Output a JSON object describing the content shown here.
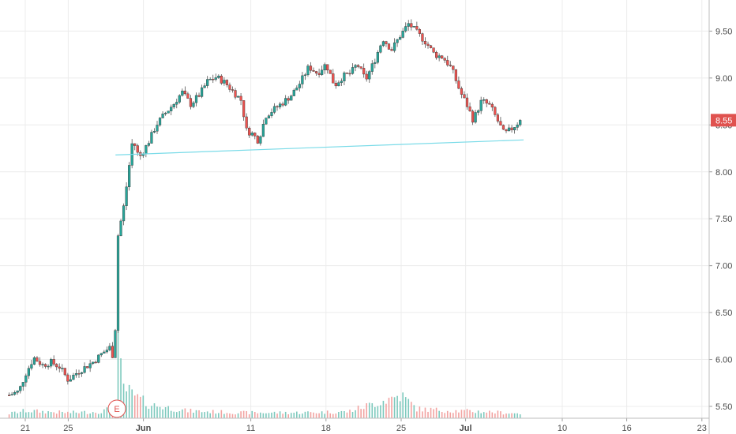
{
  "chart_data": {
    "type": "candlestick",
    "y_axis": {
      "ticks": [
        5.5,
        6.0,
        6.5,
        7.0,
        7.5,
        8.0,
        8.5,
        9.0,
        9.5
      ],
      "tick_labels": [
        "5.50",
        "6.00",
        "6.50",
        "7.00",
        "7.50",
        "8.00",
        "8.50",
        "9.00",
        "9.50"
      ],
      "ylim": [
        5.46,
        9.8
      ],
      "position": "right",
      "grid": true
    },
    "x_axis": {
      "ticks": [
        {
          "day": -10,
          "label": "21",
          "bold": false
        },
        {
          "day": -6,
          "label": "25",
          "bold": false
        },
        {
          "day": 1,
          "label": "Jun",
          "bold": true
        },
        {
          "day": 11,
          "label": "11",
          "bold": false
        },
        {
          "day": 18,
          "label": "18",
          "bold": false
        },
        {
          "day": 25,
          "label": "25",
          "bold": false
        },
        {
          "day": 31,
          "label": "Jul",
          "bold": true
        },
        {
          "day": 40,
          "label": "10",
          "bold": false
        },
        {
          "day": 46,
          "label": "16",
          "bold": false
        },
        {
          "day": 53,
          "label": "23",
          "bold": false
        }
      ],
      "grid": true
    },
    "price_path": [
      [
        -11.5,
        5.62
      ],
      [
        -10.6,
        5.66
      ],
      [
        -10.0,
        5.84
      ],
      [
        -9.2,
        6.02
      ],
      [
        -8.4,
        5.94
      ],
      [
        -7.6,
        5.97
      ],
      [
        -6.8,
        5.92
      ],
      [
        -6.0,
        5.78
      ],
      [
        -5.2,
        5.86
      ],
      [
        -4.4,
        5.92
      ],
      [
        -3.6,
        5.98
      ],
      [
        -2.8,
        6.07
      ],
      [
        -2.1,
        6.13
      ],
      [
        -1.7,
        5.98
      ],
      [
        -1.4,
        7.3
      ],
      [
        -0.8,
        7.65
      ],
      [
        0.0,
        8.35
      ],
      [
        0.6,
        8.15
      ],
      [
        1.4,
        8.3
      ],
      [
        2.2,
        8.5
      ],
      [
        3.0,
        8.62
      ],
      [
        3.8,
        8.72
      ],
      [
        4.6,
        8.85
      ],
      [
        5.4,
        8.72
      ],
      [
        6.2,
        8.82
      ],
      [
        7.0,
        8.97
      ],
      [
        7.8,
        9.01
      ],
      [
        8.6,
        8.95
      ],
      [
        9.4,
        8.85
      ],
      [
        10.2,
        8.75
      ],
      [
        10.5,
        8.45
      ],
      [
        11.2,
        8.4
      ],
      [
        11.7,
        8.33
      ],
      [
        12.4,
        8.6
      ],
      [
        13.2,
        8.67
      ],
      [
        14.0,
        8.74
      ],
      [
        14.8,
        8.82
      ],
      [
        15.6,
        8.95
      ],
      [
        16.4,
        9.12
      ],
      [
        17.2,
        9.05
      ],
      [
        18.0,
        9.15
      ],
      [
        18.8,
        8.92
      ],
      [
        19.6,
        9.02
      ],
      [
        20.3,
        9.05
      ],
      [
        20.9,
        9.15
      ],
      [
        21.7,
        8.98
      ],
      [
        22.5,
        9.18
      ],
      [
        23.3,
        9.42
      ],
      [
        24.1,
        9.3
      ],
      [
        24.9,
        9.45
      ],
      [
        25.7,
        9.58
      ],
      [
        26.5,
        9.48
      ],
      [
        27.3,
        9.38
      ],
      [
        28.1,
        9.25
      ],
      [
        28.9,
        9.22
      ],
      [
        29.7,
        9.1
      ],
      [
        30.5,
        8.85
      ],
      [
        31.1,
        8.72
      ],
      [
        31.7,
        8.55
      ],
      [
        32.5,
        8.76
      ],
      [
        33.3,
        8.7
      ],
      [
        34.0,
        8.54
      ],
      [
        34.6,
        8.4
      ],
      [
        35.3,
        8.46
      ],
      [
        36.1,
        8.55
      ]
    ],
    "volume_path": [
      [
        -11.5,
        0.05
      ],
      [
        -10.0,
        0.08
      ],
      [
        -6.0,
        0.06
      ],
      [
        -3.0,
        0.07
      ],
      [
        -1.6,
        0.12
      ],
      [
        -1.4,
        1.0
      ],
      [
        -1.0,
        0.35
      ],
      [
        0.0,
        0.25
      ],
      [
        1.5,
        0.15
      ],
      [
        5.0,
        0.08
      ],
      [
        10.0,
        0.06
      ],
      [
        15.0,
        0.06
      ],
      [
        20.0,
        0.07
      ],
      [
        25.0,
        0.25
      ],
      [
        26.5,
        0.1
      ],
      [
        30.0,
        0.08
      ],
      [
        33.0,
        0.07
      ],
      [
        36.1,
        0.05
      ]
    ],
    "trendline": {
      "start": [
        -1.6,
        8.18
      ],
      "end": [
        36.4,
        8.34
      ]
    },
    "last_price": {
      "value": 8.55,
      "label": "8.55"
    },
    "earnings_marker": {
      "label": "E"
    },
    "colors": {
      "up": "#26a69a",
      "down": "#ef5350",
      "trendline": "#7adbe8",
      "badge": "#e0524f",
      "volume": "#7dc9bd"
    }
  }
}
